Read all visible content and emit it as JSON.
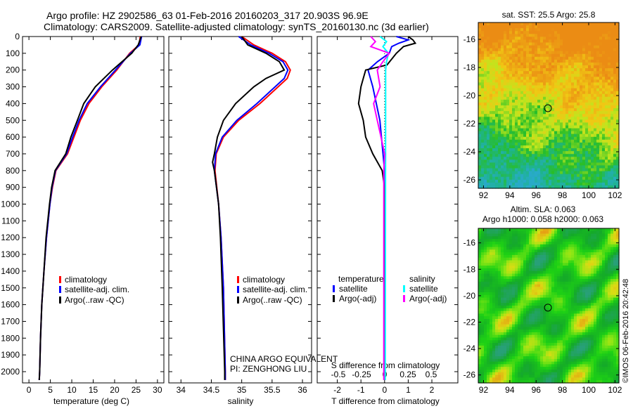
{
  "title_line1": "Argo profile: HZ 2902586_63 01-Feb-2016 20160203_317 20.903S 96.9E",
  "title_line2": "Climatology: CARS2009. Satellite-adjusted climatology: synTS_20160130.nc (3d earlier)",
  "colors": {
    "climatology": "#ff0000",
    "satellite": "#0000ff",
    "argo": "#000000",
    "sal_satellite": "#00ffff",
    "sal_argo": "#ff00ff"
  },
  "chart_data": [
    {
      "type": "line",
      "name": "temperature",
      "xlabel": "temperature (deg C)",
      "ylabel": "",
      "xlim": [
        -1.5,
        31.5
      ],
      "ylim": [
        2050,
        0
      ],
      "xticks": [
        0,
        5,
        10,
        15,
        20,
        25,
        30
      ],
      "yticks": [
        0,
        100,
        200,
        300,
        400,
        500,
        600,
        700,
        800,
        900,
        1000,
        1100,
        1200,
        1300,
        1400,
        1500,
        1600,
        1700,
        1800,
        1900,
        2000
      ],
      "legend": [
        "climatology",
        "satellite-adj. clim.",
        "Argo(..raw -QC)"
      ],
      "series": [
        {
          "name": "climatology",
          "color": "#ff0000",
          "depth": [
            0,
            50,
            100,
            200,
            300,
            400,
            500,
            600,
            700,
            800,
            900,
            1000,
            1200,
            1400,
            1600,
            1800,
            2000,
            2050
          ],
          "values": [
            26,
            25.7,
            23.5,
            20.5,
            17,
            14,
            12,
            10.5,
            9,
            6.3,
            5.5,
            4.9,
            4.1,
            3.5,
            3.0,
            2.7,
            2.5,
            2.4
          ]
        },
        {
          "name": "satellite-adj. clim.",
          "color": "#0000ff",
          "depth": [
            0,
            50,
            100,
            200,
            300,
            400,
            500,
            600,
            700,
            800,
            900,
            1000,
            1200,
            1400,
            1600,
            1800,
            2000,
            2050
          ],
          "values": [
            26.3,
            25.9,
            23.7,
            20.2,
            16.7,
            13.6,
            11.7,
            10.2,
            8.8,
            6.2,
            5.4,
            4.9,
            4.1,
            3.5,
            3.0,
            2.7,
            2.5,
            2.4
          ]
        },
        {
          "name": "Argo(..raw -QC)",
          "color": "#000000",
          "depth": [
            0,
            50,
            100,
            200,
            300,
            400,
            500,
            600,
            700,
            800,
            900,
            1000,
            1200,
            1400,
            1600,
            1800,
            2000,
            2050
          ],
          "values": [
            26.2,
            25.5,
            24,
            19.5,
            15.5,
            12.8,
            11.3,
            9.8,
            8.6,
            6.1,
            5.3,
            4.8,
            4.0,
            3.5,
            3.0,
            2.7,
            2.5,
            2.4
          ]
        }
      ]
    },
    {
      "type": "line",
      "name": "salinity",
      "xlabel": "salinity",
      "xlim": [
        33.8,
        36.15
      ],
      "ylim": [
        2050,
        0
      ],
      "xticks": [
        34,
        34.5,
        35,
        35.5,
        36
      ],
      "legend": [
        "climatology",
        "satellite-adj. clim.",
        "Argo(..raw -QC)"
      ],
      "annotation": [
        "CHINA ARGO EQUIVALENT",
        "PI: ZENGHONG LIU"
      ],
      "series": [
        {
          "name": "climatology",
          "color": "#ff0000",
          "depth": [
            0,
            50,
            100,
            150,
            200,
            250,
            300,
            400,
            500,
            600,
            700,
            800,
            1000,
            1200,
            1500,
            2000,
            2050
          ],
          "values": [
            35.0,
            35.2,
            35.5,
            35.72,
            35.8,
            35.75,
            35.6,
            35.3,
            34.95,
            34.7,
            34.58,
            34.56,
            34.62,
            34.66,
            34.7,
            34.73,
            34.73
          ]
        },
        {
          "name": "satellite-adj. clim.",
          "color": "#0000ff",
          "depth": [
            0,
            50,
            100,
            150,
            200,
            250,
            300,
            400,
            500,
            600,
            700,
            800,
            1000,
            1200,
            1500,
            2000,
            2050
          ],
          "values": [
            34.95,
            35.15,
            35.45,
            35.68,
            35.76,
            35.7,
            35.55,
            35.25,
            34.92,
            34.68,
            34.57,
            34.55,
            34.62,
            34.66,
            34.7,
            34.73,
            34.73
          ]
        },
        {
          "name": "Argo(..raw -QC)",
          "color": "#000000",
          "depth": [
            0,
            50,
            100,
            150,
            200,
            250,
            300,
            400,
            500,
            600,
            700,
            750,
            800,
            1000,
            1200,
            1500,
            2000,
            2050
          ],
          "values": [
            35.0,
            35.1,
            35.4,
            35.62,
            35.7,
            35.4,
            35.2,
            34.9,
            34.7,
            34.6,
            34.55,
            34.52,
            34.55,
            34.62,
            34.65,
            34.68,
            34.72,
            34.72
          ]
        }
      ]
    },
    {
      "type": "line",
      "name": "differences",
      "xlabel": "T difference from climatology",
      "x2label": "S difference from climatology",
      "xlim": [
        -2.85,
        3.1
      ],
      "ylim": [
        2050,
        0
      ],
      "xticks": [
        -2,
        -1,
        0,
        1,
        2
      ],
      "x2ticks": [
        "-0.5",
        "-0.25",
        "0",
        "0.25",
        "0.5"
      ],
      "x2tick_values": [
        -0.5,
        -0.25,
        0,
        0.25,
        0.5
      ],
      "legend": {
        "temperature": "temperature",
        "salinity": "salinity",
        "t_sat": "satellite",
        "t_argo": "Argo(-adj)",
        "s_sat": "satellite",
        "s_argo": "Argo(-adj)"
      },
      "series": [
        {
          "name": "T satellite",
          "color": "#0000ff",
          "scale": "T",
          "depth": [
            0,
            20,
            40,
            60,
            100,
            150,
            200,
            300,
            500,
            800,
            1000,
            2050
          ],
          "values": [
            0.5,
            1.0,
            0.6,
            0.3,
            0.2,
            -0.3,
            -0.7,
            -0.5,
            -0.2,
            0,
            0,
            0
          ]
        },
        {
          "name": "T Argo(-adj)",
          "color": "#000000",
          "scale": "T",
          "depth": [
            0,
            20,
            40,
            60,
            100,
            170,
            200,
            250,
            300,
            400,
            500,
            600,
            700,
            800,
            900,
            2050
          ],
          "values": [
            1.0,
            1.2,
            1.3,
            0.8,
            0.5,
            0.1,
            -0.8,
            -0.9,
            -1.0,
            -1.1,
            -0.9,
            -0.8,
            -0.5,
            -0.1,
            0,
            0.02
          ]
        },
        {
          "name": "S satellite",
          "color": "#00ffff",
          "scale": "S",
          "depth": [
            0,
            30,
            60,
            100,
            150,
            200,
            400,
            2050
          ],
          "values": [
            -0.05,
            0.02,
            -0.02,
            0.04,
            0.02,
            0.01,
            0.01,
            0.005
          ]
        },
        {
          "name": "S Argo(-adj)",
          "color": "#ff00ff",
          "scale": "S",
          "depth": [
            0,
            30,
            60,
            100,
            150,
            200,
            300,
            400,
            500,
            700,
            800,
            2050
          ],
          "values": [
            -0.15,
            -0.1,
            -0.15,
            0.05,
            -0.02,
            -0.08,
            -0.05,
            -0.12,
            -0.08,
            0,
            -0.01,
            -0.01
          ]
        }
      ]
    },
    {
      "type": "heatmap",
      "name": "sst_map",
      "title": "sat. SST: 25.5 Argo: 25.8",
      "xticks": [
        92,
        94,
        96,
        98,
        100,
        102
      ],
      "yticks": [
        -16,
        -18,
        -20,
        -22,
        -24,
        -26
      ],
      "xlim": [
        91.6,
        102.3
      ],
      "ylim": [
        -26.6,
        -14.8
      ],
      "marker": {
        "lon": 96.9,
        "lat": -20.9
      }
    },
    {
      "type": "heatmap",
      "name": "sla_map",
      "title": "Altim. SLA: 0.063",
      "subtitle": "Argo h1000: 0.058 h2000: 0.063",
      "xticks": [
        92,
        94,
        96,
        98,
        100,
        102
      ],
      "yticks": [
        -16,
        -18,
        -20,
        -22,
        -24,
        -26
      ],
      "xlim": [
        91.6,
        102.3
      ],
      "ylim": [
        -26.6,
        -14.9
      ],
      "marker": {
        "lon": 96.9,
        "lat": -20.9
      }
    }
  ],
  "credit": "©IMOS 06-Feb-2016 20:42:48"
}
